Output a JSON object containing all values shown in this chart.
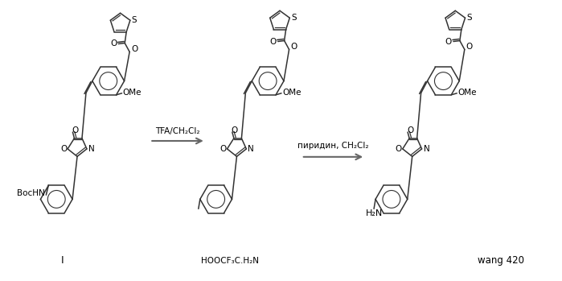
{
  "background_color": "#ffffff",
  "line_color": "#333333",
  "arrow_color": "#666666",
  "text_color": "#000000",
  "figsize": [
    6.99,
    3.49
  ],
  "dpi": 100,
  "labels": {
    "compound_I": "I",
    "compound_II": "HOOCF₃C.H₂N",
    "compound_III": "H₂N",
    "compound_IV": "wang 420",
    "reaction1": "TFA/CH₂Cl₂",
    "reaction2": "пиридин, CH₂Cl₂",
    "boc": "BocHN",
    "ome": "OMe"
  }
}
